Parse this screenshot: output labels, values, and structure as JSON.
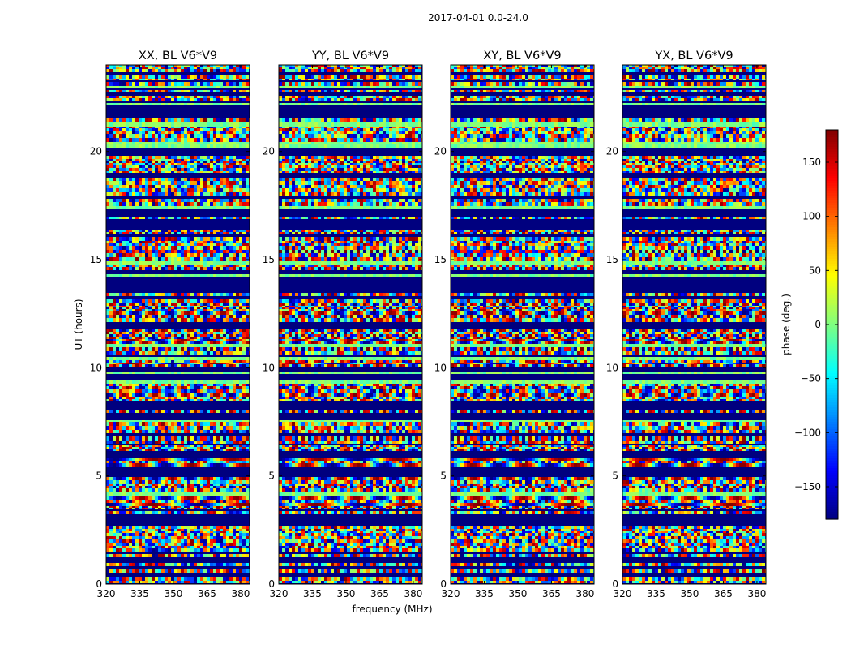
{
  "chart_data": {
    "type": "heatmap",
    "suptitle": "2017-04-01 0.0-24.0",
    "panels": [
      {
        "title": "XX, BL V6*V9"
      },
      {
        "title": "YY, BL V6*V9"
      },
      {
        "title": "XY, BL V6*V9"
      },
      {
        "title": "YX, BL V6*V9"
      }
    ],
    "xlabel": "frequency (MHz)",
    "ylabel": "UT (hours)",
    "xlim": [
      320,
      384
    ],
    "ylim": [
      0,
      24
    ],
    "xticks": [
      320,
      335,
      350,
      365,
      380
    ],
    "yticks": [
      0,
      5,
      10,
      15,
      20
    ],
    "colorbar": {
      "label": "phase (deg.)",
      "range": [
        -180,
        180
      ],
      "ticks": [
        {
          "value": 150,
          "label": "150"
        },
        {
          "value": 100,
          "label": "100"
        },
        {
          "value": 50,
          "label": "50"
        },
        {
          "value": 0,
          "label": "0"
        },
        {
          "value": -50,
          "label": "−50"
        },
        {
          "value": -100,
          "label": "−100"
        },
        {
          "value": -150,
          "label": "−150"
        }
      ],
      "colormap": "jet"
    }
  }
}
